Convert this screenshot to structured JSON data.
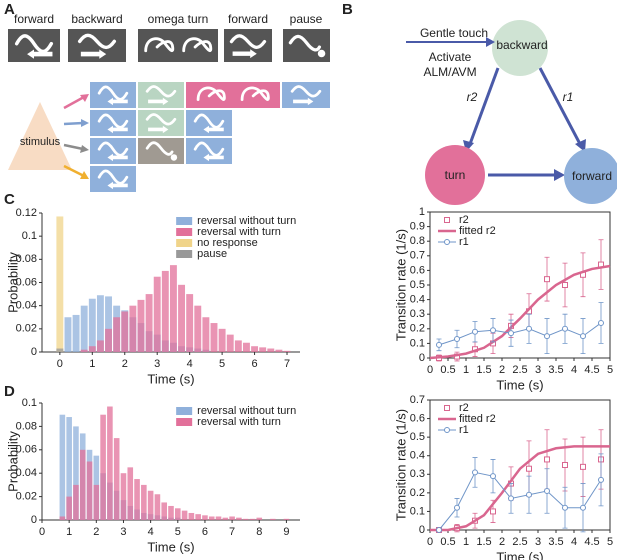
{
  "panel_labels": [
    "A",
    "B",
    "C",
    "D"
  ],
  "diagram_a": {
    "headers": [
      "forward",
      "backward",
      "omega turn",
      "forward",
      "pause"
    ],
    "stimulus": "stimulus"
  },
  "diagram_b": {
    "input": [
      "Gentle touch",
      "Activate",
      "ALM/AVM"
    ],
    "nodes": [
      "backward",
      "turn",
      "forward"
    ],
    "edges": [
      "r2",
      "r1"
    ]
  },
  "chart_data": [
    {
      "type": "histogram",
      "xlabel": "Time (s)",
      "ylabel": "Probability",
      "legend": "upper right",
      "xlim": [
        -0.55,
        7.4
      ],
      "xticks": [
        0,
        1,
        2,
        3,
        4,
        5,
        6,
        7
      ],
      "ylim": [
        0,
        0.12
      ],
      "yticks": [
        0,
        0.02,
        0.04,
        0.06,
        0.08,
        0.1,
        0.12
      ],
      "bins": [
        -0.125,
        0.125,
        0.375,
        0.625,
        0.875,
        1.125,
        1.375,
        1.625,
        1.875,
        2.125,
        2.375,
        2.625,
        2.875,
        3.125,
        3.375,
        3.625,
        3.875,
        4.125,
        4.375,
        4.625,
        4.875,
        5.125,
        5.375,
        5.625,
        5.875,
        6.125,
        6.375,
        6.625,
        6.875,
        7.125,
        7.375
      ],
      "series": [
        {
          "name": "reversal without turn",
          "color": "#8fb0db",
          "values": [
            0,
            0.03,
            0.032,
            0.04,
            0.046,
            0.049,
            0.048,
            0.04,
            0.036,
            0.03,
            0.025,
            0.018,
            0.015,
            0.01,
            0.008,
            0.005,
            0.004,
            0.003,
            0.002,
            0,
            0,
            0,
            0,
            0,
            0,
            0,
            0,
            0,
            0,
            0
          ]
        },
        {
          "name": "reversal with turn",
          "color": "#e2709a",
          "values": [
            0,
            0,
            0,
            0.002,
            0.005,
            0.01,
            0.02,
            0.03,
            0.035,
            0.04,
            0.045,
            0.05,
            0.065,
            0.07,
            0.075,
            0.058,
            0.05,
            0.04,
            0.03,
            0.025,
            0.02,
            0.015,
            0.01,
            0.008,
            0.005,
            0.004,
            0.003,
            0.002,
            0.001,
            0
          ]
        },
        {
          "name": "no response",
          "color": "#f0d48a",
          "values": [
            0.117,
            0,
            0,
            0,
            0,
            0,
            0,
            0,
            0,
            0,
            0,
            0,
            0,
            0,
            0,
            0,
            0,
            0,
            0,
            0,
            0,
            0,
            0,
            0,
            0,
            0,
            0,
            0,
            0,
            0
          ]
        },
        {
          "name": "pause",
          "color": "#999999",
          "values": [
            0.003,
            0,
            0,
            0,
            0,
            0,
            0,
            0,
            0,
            0,
            0,
            0,
            0,
            0,
            0,
            0,
            0,
            0,
            0,
            0,
            0,
            0,
            0,
            0,
            0,
            0,
            0,
            0,
            0,
            0
          ]
        }
      ]
    },
    {
      "type": "line",
      "xlabel": "Time (s)",
      "ylabel": "Transition rate (1/s)",
      "legend": "upper left",
      "frame": true,
      "xlim": [
        0,
        5
      ],
      "xticks": [
        0,
        0.5,
        1,
        1.5,
        2,
        2.5,
        3,
        3.5,
        4,
        4.5,
        5
      ],
      "ylim": [
        0,
        1
      ],
      "yticks": [
        0,
        0.1,
        0.2,
        0.3,
        0.4,
        0.5,
        0.6,
        0.7,
        0.8,
        0.9,
        1
      ],
      "series": [
        {
          "name": "r2",
          "color": "#d9668f",
          "marker": "square",
          "lines": false,
          "x": [
            0.25,
            0.75,
            1.25,
            1.75,
            2.25,
            2.75,
            3.25,
            3.75,
            4.25,
            4.75
          ],
          "values": [
            0,
            0.01,
            0.06,
            0.1,
            0.22,
            0.32,
            0.54,
            0.5,
            0.57,
            0.64
          ],
          "errors": [
            0.02,
            0.03,
            0.05,
            0.07,
            0.08,
            0.12,
            0.15,
            0.15,
            0.15,
            0.17
          ]
        },
        {
          "name": "fitted r2",
          "color": "#d9668f",
          "lines": true,
          "x": [
            0,
            0.5,
            1,
            1.5,
            2,
            2.5,
            3,
            3.5,
            4,
            4.5,
            5
          ],
          "values": [
            0,
            0.01,
            0.03,
            0.07,
            0.15,
            0.27,
            0.4,
            0.5,
            0.57,
            0.61,
            0.63
          ]
        },
        {
          "name": "r1",
          "color": "#6f95c8",
          "marker": "circle",
          "lines": true,
          "x": [
            0.25,
            0.75,
            1.25,
            1.75,
            2.25,
            2.75,
            3.25,
            3.75,
            4.25,
            4.75
          ],
          "values": [
            0.09,
            0.13,
            0.18,
            0.19,
            0.17,
            0.2,
            0.15,
            0.2,
            0.15,
            0.24
          ],
          "errors": [
            0.04,
            0.06,
            0.07,
            0.08,
            0.09,
            0.1,
            0.12,
            0.1,
            0.12,
            0.14
          ]
        }
      ]
    },
    {
      "type": "histogram",
      "xlabel": "Time (s)",
      "ylabel": "Probability",
      "legend": "upper right",
      "xlim": [
        0,
        9.5
      ],
      "xticks": [
        0,
        1,
        2,
        3,
        4,
        5,
        6,
        7,
        8,
        9
      ],
      "ylim": [
        0,
        0.1
      ],
      "yticks": [
        0,
        0.02,
        0.04,
        0.06,
        0.08,
        0.1
      ],
      "bins": [
        0.625,
        0.875,
        1.125,
        1.375,
        1.625,
        1.875,
        2.125,
        2.375,
        2.625,
        2.875,
        3.125,
        3.375,
        3.625,
        3.875,
        4.125,
        4.375,
        4.625,
        4.875,
        5.125,
        5.375,
        5.625,
        5.875,
        6.125,
        6.375,
        6.625,
        6.875,
        7.125,
        7.375,
        7.625,
        7.875,
        8.125,
        8.375,
        8.625,
        8.875,
        9.125
      ],
      "series": [
        {
          "name": "reversal without turn",
          "color": "#8fb0db",
          "values": [
            0.09,
            0.088,
            0.08,
            0.074,
            0.06,
            0.055,
            0.04,
            0.032,
            0.025,
            0.017,
            0.012,
            0.009,
            0.006,
            0.005,
            0.004,
            0.003,
            0.002,
            0.002,
            0,
            0,
            0,
            0,
            0,
            0,
            0,
            0,
            0,
            0,
            0,
            0,
            0,
            0,
            0,
            0
          ]
        },
        {
          "name": "reversal with turn",
          "color": "#e2709a",
          "values": [
            0.003,
            0.02,
            0.03,
            0.06,
            0.05,
            0.03,
            0.09,
            0.097,
            0.07,
            0.04,
            0.045,
            0.035,
            0.03,
            0.025,
            0.022,
            0.015,
            0.012,
            0.01,
            0.008,
            0.006,
            0.005,
            0.004,
            0.003,
            0.003,
            0.002,
            0.003,
            0.002,
            0.001,
            0.001,
            0.002,
            0,
            0.001,
            0,
            0.001
          ]
        }
      ]
    },
    {
      "type": "line",
      "xlabel": "Time (s)",
      "ylabel": "Transition rate (1/s)",
      "legend": "upper left",
      "frame": true,
      "xlim": [
        0,
        5
      ],
      "xticks": [
        0,
        0.5,
        1,
        1.5,
        2,
        2.5,
        3,
        3.5,
        4,
        4.5,
        5
      ],
      "ylim": [
        0,
        0.7
      ],
      "yticks": [
        0,
        0.1,
        0.2,
        0.3,
        0.4,
        0.5,
        0.6,
        0.7
      ],
      "series": [
        {
          "name": "r2",
          "color": "#d9668f",
          "marker": "square",
          "lines": false,
          "x": [
            0.25,
            0.75,
            1.25,
            1.75,
            2.25,
            2.75,
            3.25,
            3.75,
            4.25,
            4.75
          ],
          "values": [
            0,
            0.01,
            0.05,
            0.1,
            0.25,
            0.33,
            0.38,
            0.35,
            0.34,
            0.38
          ],
          "errors": [
            0.01,
            0.02,
            0.04,
            0.06,
            0.09,
            0.15,
            0.16,
            0.14,
            0.16,
            0.16
          ]
        },
        {
          "name": "fitted r2",
          "color": "#d9668f",
          "lines": true,
          "x": [
            0,
            0.5,
            1,
            1.5,
            2,
            2.5,
            3,
            3.5,
            4,
            4.5,
            5
          ],
          "values": [
            0,
            0,
            0.02,
            0.08,
            0.2,
            0.33,
            0.41,
            0.44,
            0.45,
            0.45,
            0.45
          ]
        },
        {
          "name": "r1",
          "color": "#6f95c8",
          "marker": "circle",
          "lines": true,
          "x": [
            0.25,
            0.75,
            1.25,
            1.75,
            2.25,
            2.75,
            3.25,
            3.75,
            4.25,
            4.75
          ],
          "values": [
            0,
            0.12,
            0.31,
            0.29,
            0.17,
            0.19,
            0.21,
            0.12,
            0.12,
            0.27
          ],
          "errors": [
            0.01,
            0.05,
            0.08,
            0.09,
            0.08,
            0.1,
            0.12,
            0.11,
            0.13,
            0.14
          ]
        }
      ]
    }
  ]
}
